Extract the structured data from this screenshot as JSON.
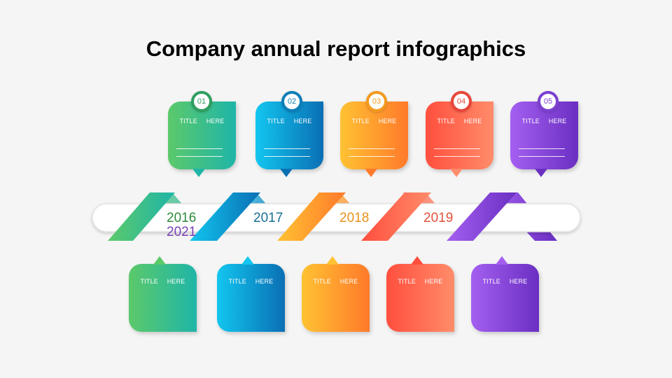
{
  "title": "Company annual report infographics",
  "steps": [
    {
      "number": "01",
      "top_label": "TITLE  HERE",
      "bottom_label": "TITLE  HERE",
      "year": "2016",
      "color_a": "#5cc96a",
      "color_b": "#1fb5a8",
      "badge_color": "#2e9e5e"
    },
    {
      "number": "02",
      "top_label": "TITLE  HERE",
      "bottom_label": "TITLE  HERE",
      "year": "2017",
      "color_a": "#12c6ef",
      "color_b": "#0a6fb4",
      "badge_color": "#0d7fb8"
    },
    {
      "number": "03",
      "top_label": "TITLE  HERE",
      "bottom_label": "TITLE  HERE",
      "year": "2018",
      "color_a": "#ffc233",
      "color_b": "#ff7a2a",
      "badge_color": "#f39a1e"
    },
    {
      "number": "04",
      "top_label": "TITLE  HERE",
      "bottom_label": "TITLE  HERE",
      "year": "2019",
      "color_a": "#ff4f3e",
      "color_b": "#ff8c6a",
      "badge_color": "#e8463a"
    },
    {
      "number": "05",
      "top_label": "TITLE  HERE",
      "bottom_label": "TITLE  HERE",
      "year": "2021",
      "color_a": "#a45ff0",
      "color_b": "#6a2fc2",
      "badge_color": "#7b3fd1"
    }
  ],
  "year_colors": [
    "#2e8a3c",
    "#1a6f94",
    "#e8921c",
    "#e2533c",
    "#7a3fb6"
  ]
}
